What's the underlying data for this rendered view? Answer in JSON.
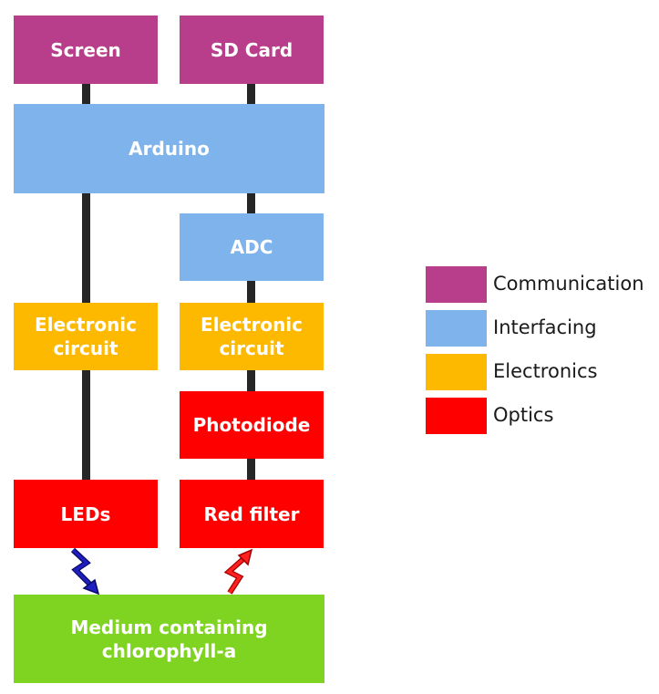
{
  "colors": {
    "communication": "#b83e8c",
    "interfacing": "#7fb3ec",
    "electronics": "#fdb800",
    "optics": "#ff0000",
    "medium": "#7fd421",
    "connector": "#262626",
    "excitation_light": "#1f1fbf",
    "fluorescence_light": "#ff0000"
  },
  "blocks": {
    "screen": "Screen",
    "sd_card": "SD Card",
    "arduino": "Arduino",
    "adc": "ADC",
    "electronic_circuit_left": "Electronic circuit",
    "electronic_circuit_right": "Electronic circuit",
    "photodiode": "Photodiode",
    "leds": "LEDs",
    "red_filter": "Red filter",
    "medium": "Medium containing chlorophyll-a"
  },
  "legend": [
    {
      "label": "Communication",
      "color": "#b83e8c"
    },
    {
      "label": "Interfacing",
      "color": "#7fb3ec"
    },
    {
      "label": "Electronics",
      "color": "#fdb800"
    },
    {
      "label": "Optics",
      "color": "#ff0000"
    }
  ],
  "icons": [
    "excitation-light-arrow-icon",
    "fluorescence-light-arrow-icon"
  ]
}
